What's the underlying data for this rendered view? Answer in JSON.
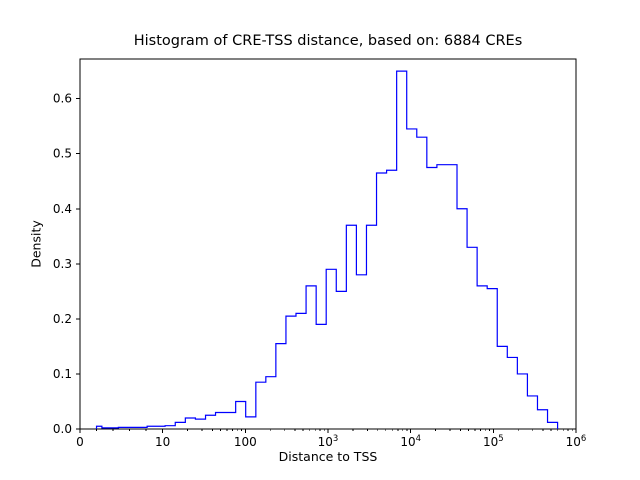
{
  "chart_data": {
    "type": "bar",
    "subtype": "step-histogram",
    "title": "Histogram of CRE-TSS distance, based on: 6884 CREs",
    "xlabel": "Distance to TSS",
    "ylabel": "Density",
    "x_scale": "symlog",
    "linthresh": 10,
    "xlim": [
      0,
      1000000
    ],
    "ylim": [
      0,
      0.672
    ],
    "grid": false,
    "legend": "none",
    "line_color": "#0000ff",
    "axis_color": "#000000",
    "background_color": "#ffffff",
    "yticks": [
      0.0,
      0.1,
      0.2,
      0.3,
      0.4,
      0.5,
      0.6
    ],
    "ytick_labels": [
      "0.0",
      "0.1",
      "0.2",
      "0.3",
      "0.4",
      "0.5",
      "0.6"
    ],
    "xticks": [
      0,
      10,
      100,
      1000,
      10000,
      100000,
      1000000
    ],
    "xtick_labels": [
      "0",
      "10",
      "100",
      "10^3",
      "10^4",
      "10^5",
      "10^6"
    ],
    "bin_edges": [
      2.0,
      2.65,
      3.5,
      4.64,
      6.14,
      8.12,
      10.7,
      14.2,
      18.8,
      24.9,
      33.0,
      43.6,
      57.7,
      76.4,
      101,
      134,
      177,
      234,
      310,
      410,
      543,
      719,
      951,
      1259,
      1667,
      2206,
      2920,
      3864,
      5114,
      6768,
      8957,
      11854,
      15688,
      20763,
      27477,
      36362,
      48119,
      63680,
      84272,
      111520,
      147574,
      195280,
      258418,
      341965,
      452547,
      598900
    ],
    "densities": [
      0.005,
      0.002,
      0.002,
      0.003,
      0.003,
      0.005,
      0.006,
      0.012,
      0.02,
      0.018,
      0.025,
      0.03,
      0.03,
      0.05,
      0.022,
      0.085,
      0.095,
      0.155,
      0.205,
      0.21,
      0.26,
      0.19,
      0.29,
      0.25,
      0.37,
      0.28,
      0.37,
      0.465,
      0.47,
      0.65,
      0.545,
      0.53,
      0.475,
      0.48,
      0.48,
      0.4,
      0.33,
      0.26,
      0.255,
      0.15,
      0.13,
      0.1,
      0.06,
      0.035,
      0.012
    ]
  }
}
